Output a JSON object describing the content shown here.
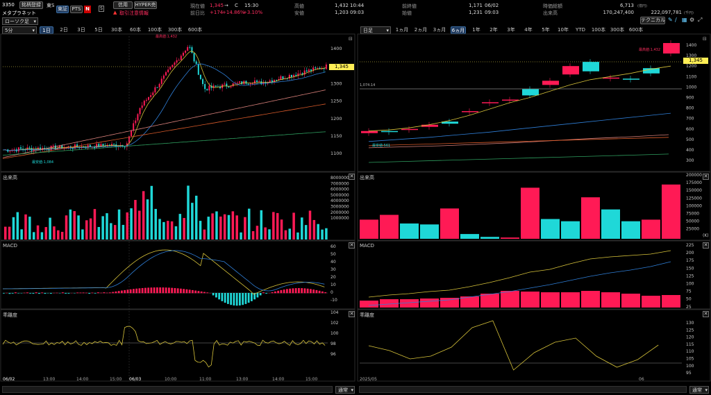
{
  "header": {
    "code": "3350",
    "register_btn": "銘柄登録",
    "market": "東S",
    "company": "メタプラネット",
    "tse_btn": "東証",
    "pts_btn": "PTS",
    "n_icon": "N",
    "s_box": "S",
    "credit_btn": "信用",
    "hyper_btn": "HYPER売",
    "warning": "取引注意情報",
    "current_label": "現在値",
    "current_value": "1,345",
    "arrow": "→",
    "c_mark": "C",
    "current_time": "15:30",
    "prev_label": "前日比",
    "prev_change": "+174",
    "prev_pct": "+14.86%",
    "prev_extra": "+3.10%",
    "high_label": "高値",
    "high_value": "1,432",
    "high_time": "10:44",
    "low_label": "安値",
    "low_value": "1,203",
    "low_time": "09:03",
    "prevclose_label": "前終値",
    "prevclose_value": "1,171",
    "prevclose_date": "06/02",
    "open_label": "始値",
    "open_value": "1,231",
    "open_time": "09:03",
    "mcap_label": "時価総額",
    "mcap_value": "6,713",
    "mcap_unit": "(億円)",
    "volume_label": "出来高",
    "volume_value": "170,247,400",
    "turnover_value": "222,097,781",
    "turnover_unit": "(千円)",
    "technical_btn": "テクニカル"
  },
  "left": {
    "chart_type": "ローソク足",
    "interval": "5分",
    "tabs": [
      "1日",
      "2日",
      "3日",
      "5日",
      "30本",
      "60本",
      "100本",
      "300本",
      "600本"
    ],
    "active_tab": 0,
    "price_ticks": [
      "1400",
      "1350",
      "1300",
      "1250",
      "1200",
      "1150",
      "1100"
    ],
    "current_price_tag": "1,345",
    "high_annot": "最高値:1,432",
    "low_annot": "最安値:1,084",
    "volume_label": "出来高",
    "volume_ticks": [
      "8000000",
      "7000000",
      "6000000",
      "5000000",
      "4000000",
      "3000000",
      "2000000",
      "1000000"
    ],
    "macd_label": "MACD",
    "macd_ticks": [
      "60",
      "50",
      "40",
      "30",
      "20",
      "10",
      "0",
      "-10"
    ],
    "ratio_label": "乖離度",
    "ratio_ticks": [
      "104",
      "102",
      "100",
      "98",
      "96"
    ],
    "x_labels": [
      "06/02",
      "13:00",
      "14:00",
      "15:00",
      "06/03",
      "10:00",
      "11:00",
      "13:00",
      "14:00",
      "15:00"
    ],
    "scroll_select": "通常"
  },
  "right": {
    "interval": "日足",
    "tabs": [
      "1ヵ月",
      "2ヵ月",
      "3ヵ月",
      "6ヵ月",
      "1年",
      "2年",
      "3年",
      "4年",
      "5年",
      "10年",
      "YTD",
      "100本",
      "300本",
      "600本"
    ],
    "active_tab": 3,
    "price_ticks": [
      "1400",
      "1300",
      "1200",
      "1100",
      "1000",
      "900",
      "800",
      "700",
      "600",
      "500",
      "400",
      "300"
    ],
    "current_price_tag": "1,345",
    "high_annot": "最高値:1,432",
    "low_annot": "最安値:561",
    "ref_line_label": "1,074.14",
    "volume_label": "出来高",
    "volume_ticks": [
      "200000",
      "175000",
      "150000",
      "125000",
      "100000",
      "75000",
      "50000",
      "25000"
    ],
    "volume_unit": "(K)",
    "macd_label": "MACD",
    "macd_ticks": [
      "225",
      "200",
      "175",
      "150",
      "125",
      "100",
      "75",
      "50",
      "25"
    ],
    "ratio_label": "乖離度",
    "ratio_ticks": [
      "130",
      "125",
      "120",
      "115",
      "110",
      "105",
      "100",
      "95"
    ],
    "x_labels": [
      "2025/05",
      "06"
    ],
    "scroll_select": "通常"
  },
  "colors": {
    "up": "#ff1a55",
    "down": "#1fd8d8",
    "ma_short": "#d8c43a",
    "ma_mid": "#2f7fd8",
    "ma_long": "#d85a2a",
    "ma_longest": "#2fa060",
    "tag": "#ffee55"
  }
}
